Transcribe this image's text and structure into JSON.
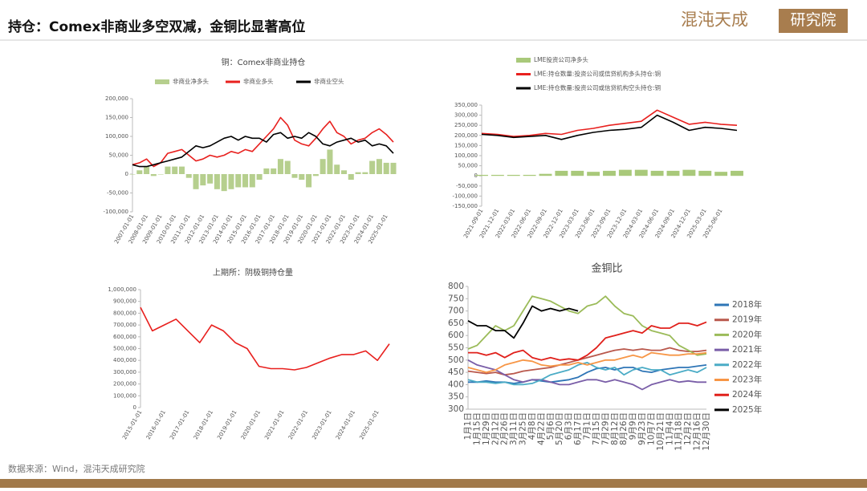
{
  "header": {
    "title": "持仓：Comex非商业多空双减，金铜比显著高位",
    "logo_left": "混沌天成",
    "logo_right": "研究院"
  },
  "footer": {
    "source": "数据来源：Wind，混沌天成研究院"
  },
  "chart_data": [
    {
      "type": "line",
      "title": "铜：Comex非商业持仓",
      "legend": "top",
      "grid": false,
      "categories": [
        "2007-01-01",
        null,
        "2008-01-01",
        null,
        "2009-01-01",
        null,
        "2010-01-01",
        null,
        "2011-01-01",
        null,
        "2012-01-01",
        null,
        "2013-01-01",
        null,
        "2014-01-01",
        null,
        "2015-01-01",
        null,
        "2016-01-01",
        null,
        "2017-01-01",
        null,
        "2018-01-01",
        null,
        "2019-01-01",
        null,
        "2020-01-01",
        null,
        "2021-01-01",
        null,
        "2022-01-01",
        null,
        "2023-01-01",
        null,
        "2024-01-01",
        null,
        "2025-01-01",
        null
      ],
      "ylim": [
        -100000,
        200000
      ],
      "yticks": [
        {
          "value": 200000,
          "label": "200,000"
        },
        {
          "value": 150000,
          "label": "150,000"
        },
        {
          "value": 100000,
          "label": "100,000"
        },
        {
          "value": 50000,
          "label": "50,000"
        },
        0,
        {
          "value": -50000,
          "label": "-50,000"
        },
        {
          "value": -100000,
          "label": "-100,000"
        }
      ],
      "series": [
        {
          "name": "非商业净多头",
          "type": "bar",
          "color": "#b6cf8e",
          "values": [
            0,
            10000,
            20000,
            -5000,
            0,
            20000,
            20000,
            20000,
            -10000,
            -40000,
            -30000,
            -25000,
            -40000,
            -45000,
            -40000,
            -35000,
            -35000,
            -35000,
            -15000,
            15000,
            15000,
            40000,
            35000,
            -10000,
            -15000,
            -35000,
            -5000,
            40000,
            65000,
            25000,
            10000,
            -15000,
            5000,
            5000,
            35000,
            40000,
            30000,
            30000
          ]
        },
        {
          "name": "非商业多头",
          "type": "line",
          "color": "#e8201e",
          "values": [
            25000,
            30000,
            40000,
            20000,
            30000,
            55000,
            60000,
            65000,
            50000,
            35000,
            40000,
            50000,
            45000,
            50000,
            60000,
            55000,
            65000,
            60000,
            80000,
            100000,
            120000,
            150000,
            130000,
            90000,
            80000,
            75000,
            95000,
            120000,
            140000,
            110000,
            100000,
            80000,
            90000,
            95000,
            110000,
            120000,
            105000,
            85000
          ]
        },
        {
          "name": "非商业空头",
          "type": "line",
          "color": "#000000",
          "values": [
            25000,
            20000,
            20000,
            25000,
            30000,
            35000,
            40000,
            45000,
            60000,
            75000,
            70000,
            75000,
            85000,
            95000,
            100000,
            90000,
            100000,
            95000,
            95000,
            85000,
            105000,
            110000,
            95000,
            100000,
            95000,
            110000,
            100000,
            80000,
            75000,
            85000,
            90000,
            95000,
            85000,
            90000,
            75000,
            80000,
            75000,
            55000
          ]
        }
      ]
    },
    {
      "type": "line",
      "legend": "top-left",
      "grid": false,
      "categories": [
        "2021-09-01",
        "2021-12-01",
        "2022-03-01",
        "2022-06-01",
        "2022-09-01",
        "2022-12-01",
        "2023-03-01",
        "2023-06-01",
        "2023-09-01",
        "2023-12-01",
        "2024-03-01",
        "2024-06-01",
        "2024-09-01",
        "2024-12-01",
        "2025-03-01",
        "2025-06-01",
        null
      ],
      "ylim": [
        -150000,
        350000
      ],
      "yticks": [
        {
          "value": 350000,
          "label": "350,000"
        },
        {
          "value": 300000,
          "label": "300,000"
        },
        {
          "value": 250000,
          "label": "250,000"
        },
        {
          "value": 200000,
          "label": "200,000"
        },
        {
          "value": 150000,
          "label": "150,000"
        },
        {
          "value": 100000,
          "label": "100,000"
        },
        {
          "value": 50000,
          "label": "50,000"
        },
        0,
        {
          "value": -50000,
          "label": "-50,000"
        },
        {
          "value": -100000,
          "label": "-100,000"
        },
        {
          "value": -150000,
          "label": "-150,000"
        }
      ],
      "series": [
        {
          "name": "LME投资公司净多头",
          "type": "bar",
          "color": "#a9c97a",
          "values": [
            5000,
            5000,
            5000,
            5000,
            10000,
            25000,
            25000,
            20000,
            25000,
            30000,
            30000,
            25000,
            25000,
            30000,
            25000,
            20000,
            25000
          ]
        },
        {
          "name": "LME:持仓数量:投资公司或信贷机构多头持仓:铜",
          "type": "line",
          "color": "#e8201e",
          "values": [
            210000,
            205000,
            195000,
            200000,
            210000,
            205000,
            225000,
            235000,
            250000,
            260000,
            270000,
            325000,
            290000,
            255000,
            265000,
            255000,
            250000
          ]
        },
        {
          "name": "LME:持仓数量:投资公司或信贷机构空头持仓:铜",
          "type": "line",
          "color": "#000000",
          "values": [
            205000,
            200000,
            190000,
            195000,
            200000,
            180000,
            200000,
            215000,
            225000,
            230000,
            240000,
            300000,
            265000,
            225000,
            240000,
            235000,
            225000
          ]
        }
      ]
    },
    {
      "type": "line",
      "title": "上期所：阴极铜持仓量",
      "grid": false,
      "categories": [
        "2015-01-01",
        null,
        "2016-01-01",
        null,
        "2017-01-01",
        null,
        "2018-01-01",
        null,
        "2019-01-01",
        null,
        "2020-01-01",
        null,
        "2021-01-01",
        null,
        "2022-01-01",
        null,
        "2023-01-01",
        null,
        "2024-01-01",
        null,
        "2025-01-01",
        null
      ],
      "ylim": [
        0,
        1000000
      ],
      "yticks": [
        {
          "value": 1000000,
          "label": "1,000,000"
        },
        {
          "value": 900000,
          "label": "900,000"
        },
        {
          "value": 800000,
          "label": "800,000"
        },
        {
          "value": 700000,
          "label": "700,000"
        },
        {
          "value": 600000,
          "label": "600,000"
        },
        {
          "value": 500000,
          "label": "500,000"
        },
        {
          "value": 400000,
          "label": "400,000"
        },
        {
          "value": 300000,
          "label": "300,000"
        },
        {
          "value": 200000,
          "label": "200,000"
        },
        {
          "value": 100000,
          "label": "100,000"
        },
        0
      ],
      "series": [
        {
          "type": "line",
          "color": "#e8201e",
          "values": [
            850000,
            650000,
            700000,
            750000,
            650000,
            550000,
            700000,
            650000,
            550000,
            500000,
            350000,
            330000,
            330000,
            320000,
            340000,
            380000,
            420000,
            450000,
            450000,
            480000,
            400000,
            540000
          ]
        }
      ]
    },
    {
      "type": "line",
      "title": "金铜比",
      "legend": "right",
      "grid": false,
      "categories": [
        "1月1日",
        "1月15日",
        "1月29日",
        "2月12日",
        "2月26日",
        "3月11日",
        "3月25日",
        "4月8日",
        "4月22日",
        "5月6日",
        "5月20日",
        "6月3日",
        "6月17日",
        "7月1日",
        "7月15日",
        "7月29日",
        "8月12日",
        "8月26日",
        "9月9日",
        "9月23日",
        "10月7日",
        "10月21日",
        "11月4日",
        "11月18日",
        "12月2日",
        "12月16日",
        "12月30日"
      ],
      "ylim": [
        300,
        800
      ],
      "yticks": [
        800,
        750,
        700,
        650,
        600,
        550,
        500,
        450,
        400,
        350,
        300
      ],
      "series": [
        {
          "name": "2018年",
          "type": "line",
          "color": "#2e75b6",
          "values": [
            410,
            410,
            415,
            410,
            410,
            405,
            410,
            420,
            415,
            410,
            415,
            420,
            430,
            450,
            465,
            470,
            460,
            470,
            470,
            455,
            450,
            460,
            465,
            470,
            470,
            475,
            480
          ]
        },
        {
          "name": "2019年",
          "type": "line",
          "color": "#b9584c",
          "values": [
            455,
            450,
            445,
            450,
            440,
            445,
            455,
            460,
            465,
            470,
            480,
            490,
            500,
            510,
            520,
            530,
            540,
            545,
            540,
            545,
            540,
            540,
            550,
            540,
            535,
            535,
            540
          ]
        },
        {
          "name": "2020年",
          "type": "line",
          "color": "#9bbb59",
          "values": [
            545,
            560,
            600,
            640,
            620,
            640,
            700,
            760,
            750,
            740,
            720,
            700,
            690,
            720,
            730,
            760,
            720,
            690,
            680,
            640,
            620,
            610,
            600,
            560,
            540,
            520,
            525
          ]
        },
        {
          "name": "2021年",
          "type": "line",
          "color": "#7a5ea8",
          "values": [
            500,
            480,
            470,
            460,
            440,
            420,
            410,
            420,
            420,
            410,
            400,
            400,
            410,
            420,
            420,
            410,
            420,
            410,
            400,
            380,
            400,
            410,
            420,
            410,
            415,
            410,
            410
          ]
        },
        {
          "name": "2022年",
          "type": "line",
          "color": "#4bacc6",
          "values": [
            420,
            410,
            410,
            405,
            410,
            400,
            400,
            405,
            420,
            440,
            450,
            460,
            480,
            490,
            470,
            460,
            470,
            440,
            460,
            470,
            460,
            460,
            440,
            450,
            460,
            450,
            470
          ]
        },
        {
          "name": "2023年",
          "type": "line",
          "color": "#f79646",
          "values": [
            470,
            460,
            450,
            460,
            480,
            490,
            500,
            495,
            480,
            475,
            480,
            480,
            490,
            480,
            490,
            500,
            500,
            510,
            520,
            510,
            530,
            525,
            520,
            520,
            525,
            525,
            530
          ]
        },
        {
          "name": "2024年",
          "type": "line",
          "color": "#e0201b",
          "values": [
            530,
            530,
            520,
            530,
            510,
            530,
            540,
            510,
            500,
            510,
            500,
            505,
            500,
            520,
            550,
            590,
            600,
            610,
            620,
            610,
            640,
            630,
            630,
            650,
            650,
            640,
            655
          ]
        },
        {
          "name": "2025年",
          "type": "line",
          "color": "#000000",
          "values": [
            660,
            640,
            640,
            620,
            620,
            590,
            650,
            720,
            700,
            710,
            700,
            710,
            700,
            null,
            null,
            null,
            null,
            null,
            null,
            null,
            null,
            null,
            null,
            null,
            null,
            null,
            null
          ]
        }
      ]
    }
  ]
}
